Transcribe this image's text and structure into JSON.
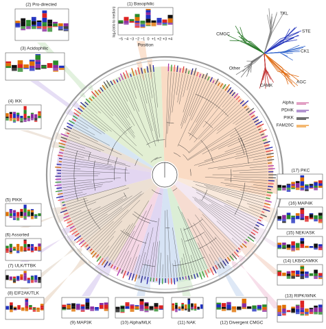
{
  "logo_axis": {
    "y_label": "log₂(ratio to median)",
    "x_label": "Position",
    "x_ticks": [
      "−5",
      "−4",
      "−3",
      "−2",
      "−1",
      "0",
      "+1",
      "+2",
      "+3",
      "+4"
    ]
  },
  "panels": [
    {
      "label": "(1) Basophilic"
    },
    {
      "label": "(2) Pro-directed"
    },
    {
      "label": "(3) Acidophilic"
    },
    {
      "label": "(4) IKK"
    },
    {
      "label": "(5) PIKK"
    },
    {
      "label": "(6) Assorted"
    },
    {
      "label": "(7) ULK/TTBK"
    },
    {
      "label": "(8) EIF2AK/TLK"
    },
    {
      "label": "(9) MAP3K"
    },
    {
      "label": "(10) Alpha/MLK"
    },
    {
      "label": "(11) NAK"
    },
    {
      "label": "(12) Divergent CMGC"
    },
    {
      "label": "(13) RIPK/WNK"
    },
    {
      "label": "(14) LKB/CAMKK"
    },
    {
      "label": "(15) NEK/ASK"
    },
    {
      "label": "(16) MAP4K"
    },
    {
      "label": "(17) PKC"
    }
  ],
  "kinome_groups": [
    "TKL",
    "STE",
    "CK1",
    "AGC",
    "CAMK",
    "Other",
    "CMGC"
  ],
  "legend": [
    "Alpha",
    "PDHK",
    "PIKK",
    "FAM20C"
  ]
}
